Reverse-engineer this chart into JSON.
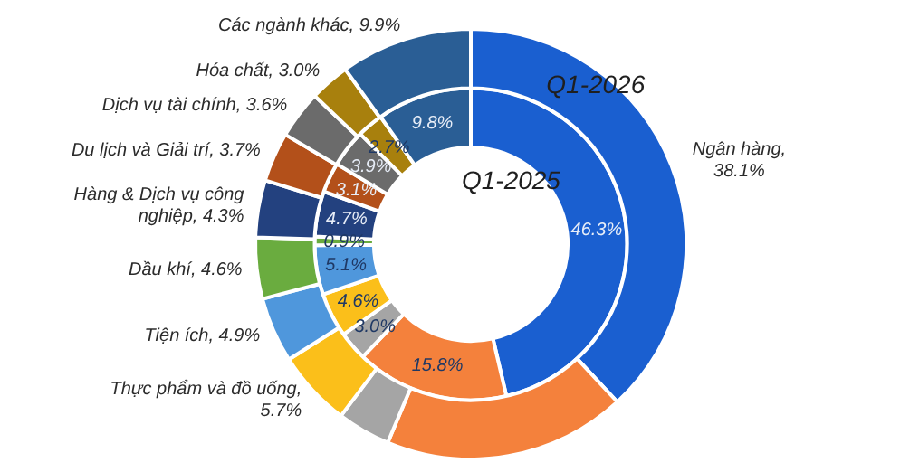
{
  "chart_data": {
    "type": "donut",
    "categories": [
      "Ngân hàng, 38.1%",
      null,
      null,
      "Thực phẩm và đồ uống, 5.7%",
      "Tiện ích, 4.9%",
      "Dầu khí, 4.6%",
      "Hàng & Dịch vụ công nghiệp, 4.3%",
      "Du lịch và Giải trí, 3.7%",
      "Dịch vụ tài chính, 3.6%",
      "Hóa chất, 3.0%",
      "Các ngành khác, 9.9%"
    ],
    "colors": [
      "#1a5fd0",
      "#f4813c",
      "#a5a5a5",
      "#fbbf1a",
      "#4f97dc",
      "#6aac3f",
      "#23417f",
      "#b3501a",
      "#6b6b6b",
      "#a8800d",
      "#2a5e95"
    ],
    "series": [
      {
        "name": "Q1-2026",
        "values": [
          38.1,
          18.2,
          4.0,
          5.7,
          4.9,
          4.6,
          4.3,
          3.7,
          3.6,
          3.0,
          9.9
        ]
      },
      {
        "name": "Q1-2025",
        "values": [
          46.3,
          15.8,
          3.0,
          4.6,
          5.1,
          0.9,
          4.7,
          3.1,
          3.9,
          2.7,
          9.8
        ],
        "value_labels": [
          "46.3%",
          "15.8%",
          "3.0%",
          "4.6%",
          "5.1%",
          "0.9%",
          "4.7%",
          "3.1%",
          "3.9%",
          "2.7%",
          "9.8%"
        ]
      }
    ]
  }
}
